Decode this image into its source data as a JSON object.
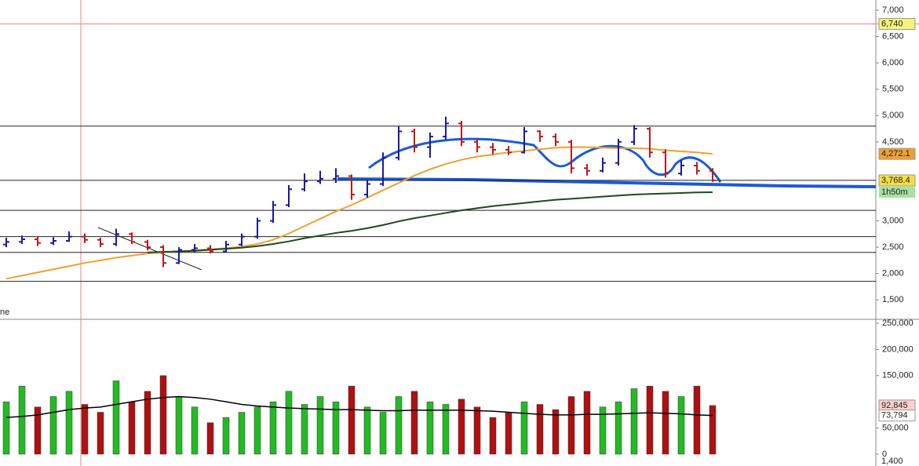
{
  "chart_data": [
    {
      "type": "ohlc",
      "legend_fragment": "ne",
      "ylim": [
        1130,
        7195
      ],
      "yticks": [
        {
          "value": 7000,
          "label": "7,000"
        },
        {
          "value": 6500,
          "label": "6,500"
        },
        {
          "value": 6000,
          "label": "6,000"
        },
        {
          "value": 5500,
          "label": "5,500"
        },
        {
          "value": 5000,
          "label": "5,000"
        },
        {
          "value": 4500,
          "label": "4,500"
        },
        {
          "value": 3000,
          "label": "3,000"
        },
        {
          "value": 2500,
          "label": "2,500"
        },
        {
          "value": 2000,
          "label": "2,000"
        },
        {
          "value": 1500,
          "label": "1,500"
        }
      ],
      "up_color": "#1a1aa0",
      "down_color": "#c01818",
      "open": [
        2550,
        2600,
        2650,
        2580,
        2620,
        2700,
        2640,
        2560,
        2750,
        2600,
        2500,
        2200,
        2450,
        2480,
        2420,
        2550,
        2700,
        3000,
        3300,
        3600,
        3750,
        3800,
        3850,
        3500,
        3700,
        4200,
        4700,
        4400,
        4600,
        4850,
        4500,
        4400,
        4350,
        4300,
        4700,
        4600,
        4500,
        4000,
        3950,
        4100,
        4500,
        4750,
        4300,
        3900,
        4050,
        3950
      ],
      "high": [
        2680,
        2720,
        2700,
        2690,
        2800,
        2760,
        2680,
        2850,
        2780,
        2640,
        2540,
        2500,
        2560,
        2540,
        2620,
        2760,
        3060,
        3380,
        3680,
        3900,
        3950,
        4000,
        3880,
        3780,
        4300,
        4800,
        4750,
        4680,
        4980,
        4900,
        4560,
        4480,
        4420,
        4780,
        4720,
        4660,
        4540,
        4080,
        4200,
        4560,
        4820,
        4780,
        4360,
        4150,
        4120,
        4000
      ],
      "low": [
        2500,
        2560,
        2520,
        2540,
        2600,
        2580,
        2500,
        2520,
        2560,
        2440,
        2120,
        2180,
        2400,
        2380,
        2400,
        2520,
        2660,
        2960,
        3260,
        3560,
        3700,
        3720,
        3400,
        3440,
        3660,
        4150,
        4300,
        4200,
        4550,
        4420,
        4300,
        4260,
        4250,
        4280,
        4500,
        4420,
        3900,
        3860,
        3920,
        4050,
        4440,
        4200,
        3820,
        3860,
        3880,
        3740
      ],
      "close": [
        2600,
        2650,
        2580,
        2620,
        2700,
        2640,
        2560,
        2750,
        2600,
        2500,
        2200,
        2450,
        2480,
        2420,
        2550,
        2700,
        3000,
        3300,
        3600,
        3750,
        3800,
        3850,
        3500,
        3700,
        4200,
        4700,
        4400,
        4600,
        4850,
        4500,
        4400,
        4350,
        4300,
        4700,
        4600,
        4500,
        4000,
        3950,
        4100,
        4500,
        4750,
        4300,
        3900,
        4050,
        3950,
        3770
      ],
      "lines": [
        {
          "color": "#f0a030",
          "values": [
            1900,
            1960,
            2020,
            2080,
            2140,
            2200,
            2250,
            2300,
            2340,
            2380,
            2400,
            2420,
            2440,
            2460,
            2480,
            2510,
            2560,
            2640,
            2760,
            2900,
            3040,
            3180,
            3300,
            3440,
            3580,
            3720,
            3860,
            3980,
            4080,
            4160,
            4220,
            4260,
            4300,
            4330,
            4360,
            4390,
            4400,
            4400,
            4390,
            4380,
            4380,
            4370,
            4340,
            4320,
            4300,
            4272
          ]
        },
        {
          "color": "#1e4a1e",
          "values": [
            null,
            null,
            null,
            null,
            null,
            null,
            null,
            null,
            null,
            2400,
            2410,
            2420,
            2430,
            2450,
            2470,
            2490,
            2520,
            2560,
            2610,
            2670,
            2720,
            2770,
            2810,
            2860,
            2920,
            2990,
            3050,
            3100,
            3150,
            3200,
            3240,
            3280,
            3310,
            3340,
            3370,
            3400,
            3420,
            3440,
            3460,
            3480,
            3500,
            3510,
            3520,
            3530,
            3540,
            3545
          ]
        }
      ],
      "levels": [
        4800,
        3770,
        3200,
        2700,
        2400,
        1850
      ],
      "markers": [
        {
          "value": 6740,
          "label": "6,740",
          "color": "#f4f47a"
        },
        {
          "value": 4272.1,
          "label": "4,272.1",
          "color": "#f0a030"
        },
        {
          "value": 3768.4,
          "label": "3,768.4",
          "color": "#f4e040"
        }
      ],
      "countdown": "1h50m"
    },
    {
      "type": "volume",
      "ylim": [
        -22600,
        257500
      ],
      "yticks": [
        {
          "value": 250000,
          "label": "250,000"
        },
        {
          "value": 200000,
          "label": "200,000"
        },
        {
          "value": 150000,
          "label": "150,000"
        },
        {
          "value": 50000,
          "label": "50,000"
        },
        0
      ],
      "values": [
        100000,
        130000,
        90000,
        110000,
        120000,
        95000,
        80000,
        140000,
        100000,
        120000,
        150000,
        110000,
        90000,
        60000,
        70000,
        80000,
        90000,
        100000,
        120000,
        95000,
        110000,
        100000,
        130000,
        90000,
        80000,
        110000,
        120000,
        100000,
        95000,
        105000,
        90000,
        70000,
        80000,
        100000,
        95000,
        85000,
        110000,
        120000,
        90000,
        100000,
        125000,
        130000,
        120000,
        110000,
        130000,
        92845
      ],
      "ma": {
        "color": "#000000",
        "values": [
          70000,
          72000,
          75000,
          80000,
          85000,
          88000,
          90000,
          95000,
          100000,
          105000,
          108000,
          110000,
          108000,
          105000,
          100000,
          95000,
          92000,
          90000,
          88000,
          87000,
          86000,
          85000,
          85000,
          84000,
          83000,
          83000,
          84000,
          84000,
          84000,
          84000,
          83000,
          82000,
          80000,
          78000,
          76000,
          75000,
          75000,
          76000,
          76000,
          77000,
          78000,
          79000,
          78000,
          77000,
          75000,
          73794
        ]
      },
      "markers": [
        {
          "value": 92845,
          "label": "92,845",
          "color": "#ffd0d0"
        },
        {
          "value": 73794,
          "label": "73,794",
          "color": "#ffffff"
        }
      ],
      "bottom_label": "1,400"
    }
  ]
}
